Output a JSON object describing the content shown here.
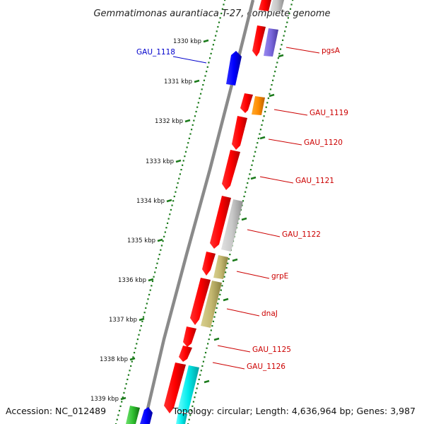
{
  "title": "Gemmatimonas aurantiaca T-27, complete genome",
  "accession_text": "Accession: NC_012489",
  "summary_text": "Topology: circular; Length: 4,636,964 bp; Genes: 3,987",
  "colors": {
    "backbone": "#808080",
    "ticks": "#1a7a1a",
    "forward_label": "#cc0000",
    "reverse_label": "#0000cc"
  },
  "ticks": [
    {
      "label": "1330 kbp"
    },
    {
      "label": "1331 kbp"
    },
    {
      "label": "1332 kbp"
    },
    {
      "label": "1333 kbp"
    },
    {
      "label": "1334 kbp"
    },
    {
      "label": "1335 kbp"
    },
    {
      "label": "1336 kbp"
    },
    {
      "label": "1337 kbp"
    },
    {
      "label": "1338 kbp"
    },
    {
      "label": "1339 kbp"
    }
  ],
  "gene_labels": [
    {
      "name": "GAU_1118",
      "strand": "reverse"
    },
    {
      "name": "pgsA",
      "strand": "forward"
    },
    {
      "name": "GAU_1119",
      "strand": "forward"
    },
    {
      "name": "GAU_1120",
      "strand": "forward"
    },
    {
      "name": "GAU_1121",
      "strand": "forward"
    },
    {
      "name": "GAU_1122",
      "strand": "forward"
    },
    {
      "name": "grpE",
      "strand": "forward"
    },
    {
      "name": "dnaJ",
      "strand": "forward"
    },
    {
      "name": "GAU_1125",
      "strand": "forward"
    },
    {
      "name": "GAU_1126",
      "strand": "forward"
    }
  ]
}
